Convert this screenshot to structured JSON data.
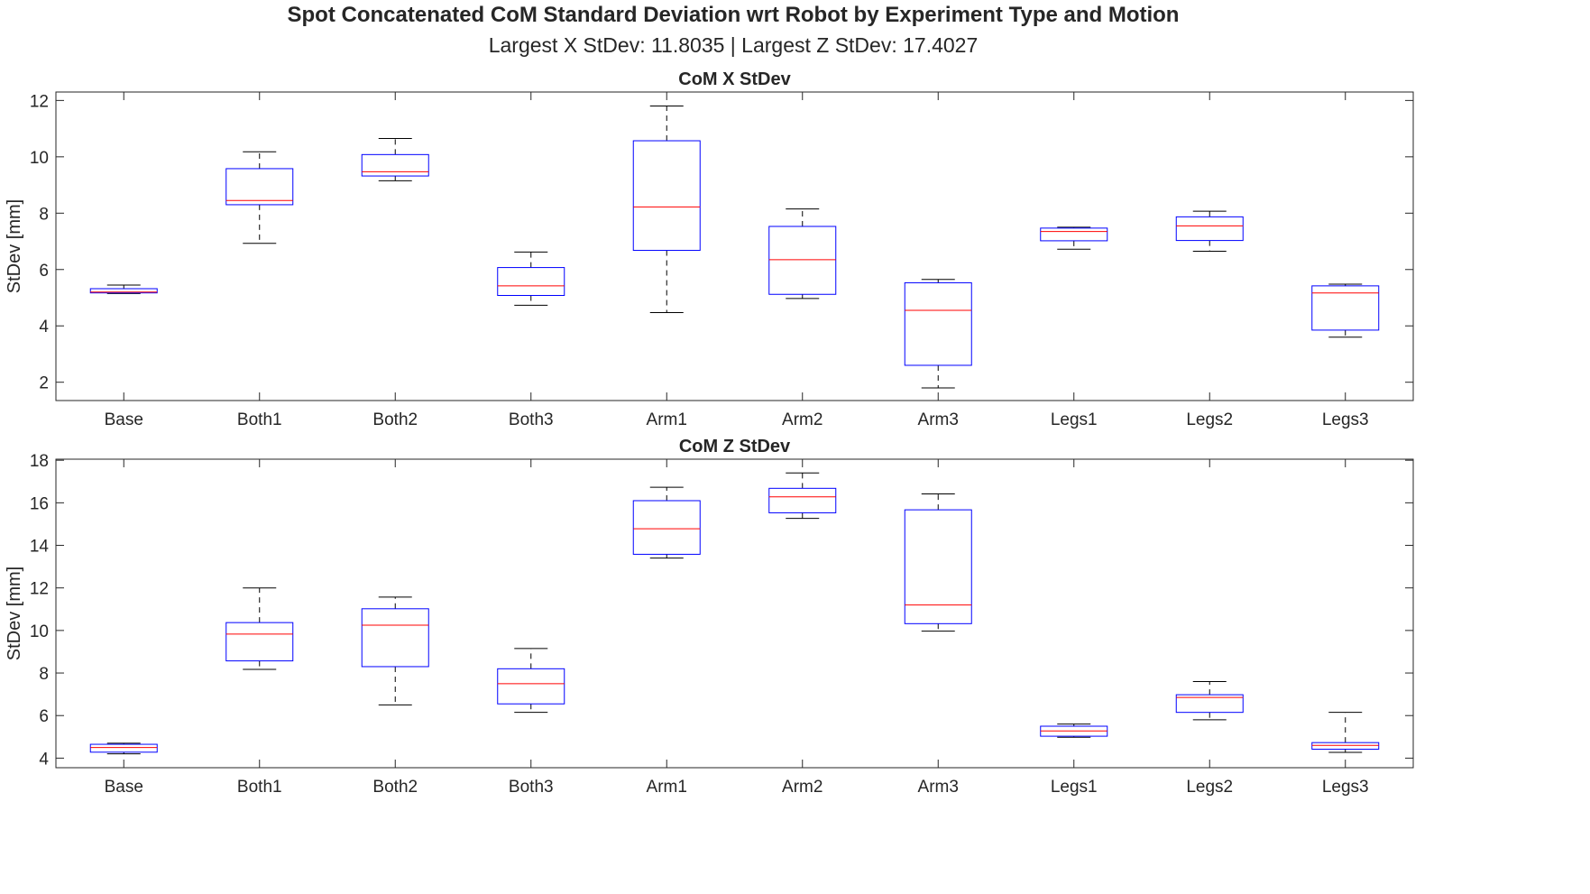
{
  "figure": {
    "title": "Spot Concatenated CoM Standard Deviation wrt Robot by Experiment Type and Motion",
    "subtitle": "Largest X StDev: 11.8035  |  Largest Z StDev: 17.4027"
  },
  "chart_data": [
    {
      "type": "boxplot",
      "title": "CoM X StDev",
      "xlabel": "",
      "ylabel": "StDev [mm]",
      "ylim": [
        1.35,
        12.3
      ],
      "yticks": [
        2,
        4,
        6,
        8,
        10,
        12
      ],
      "categories": [
        "Base",
        "Both1",
        "Both2",
        "Both3",
        "Arm1",
        "Arm2",
        "Arm3",
        "Legs1",
        "Legs2",
        "Legs3"
      ],
      "boxes": [
        {
          "min": 5.15,
          "q1": 5.17,
          "median": 5.2,
          "q3": 5.32,
          "max": 5.45
        },
        {
          "min": 6.93,
          "q1": 8.3,
          "median": 8.45,
          "q3": 9.58,
          "max": 10.18
        },
        {
          "min": 9.15,
          "q1": 9.32,
          "median": 9.47,
          "q3": 10.08,
          "max": 10.65
        },
        {
          "min": 4.73,
          "q1": 5.08,
          "median": 5.42,
          "q3": 6.07,
          "max": 6.62
        },
        {
          "min": 4.47,
          "q1": 6.68,
          "median": 8.22,
          "q3": 10.57,
          "max": 11.8035
        },
        {
          "min": 4.97,
          "q1": 5.12,
          "median": 6.35,
          "q3": 7.53,
          "max": 8.15
        },
        {
          "min": 1.8,
          "q1": 2.6,
          "median": 4.55,
          "q3": 5.53,
          "max": 5.65
        },
        {
          "min": 6.72,
          "q1": 7.02,
          "median": 7.35,
          "q3": 7.47,
          "max": 7.5
        },
        {
          "min": 6.65,
          "q1": 7.03,
          "median": 7.55,
          "q3": 7.87,
          "max": 8.07
        },
        {
          "min": 3.6,
          "q1": 3.85,
          "median": 5.17,
          "q3": 5.42,
          "max": 5.48
        }
      ],
      "colors": {
        "box": "#0000ff",
        "median": "#ff0000",
        "whisker": "#000000"
      }
    },
    {
      "type": "boxplot",
      "title": "CoM Z StDev",
      "xlabel": "",
      "ylabel": "StDev [mm]",
      "ylim": [
        3.55,
        18.05
      ],
      "yticks": [
        4,
        6,
        8,
        10,
        12,
        14,
        16,
        18
      ],
      "categories": [
        "Base",
        "Both1",
        "Both2",
        "Both3",
        "Arm1",
        "Arm2",
        "Arm3",
        "Legs1",
        "Legs2",
        "Legs3"
      ],
      "boxes": [
        {
          "min": 4.2,
          "q1": 4.28,
          "median": 4.5,
          "q3": 4.65,
          "max": 4.7
        },
        {
          "min": 8.17,
          "q1": 8.57,
          "median": 9.83,
          "q3": 10.37,
          "max": 12.0
        },
        {
          "min": 6.5,
          "q1": 8.3,
          "median": 10.25,
          "q3": 11.02,
          "max": 11.57
        },
        {
          "min": 6.15,
          "q1": 6.55,
          "median": 7.5,
          "q3": 8.2,
          "max": 9.15
        },
        {
          "min": 13.4,
          "q1": 13.58,
          "median": 14.78,
          "q3": 16.1,
          "max": 16.73
        },
        {
          "min": 15.27,
          "q1": 15.53,
          "median": 16.28,
          "q3": 16.68,
          "max": 17.4027
        },
        {
          "min": 9.97,
          "q1": 10.32,
          "median": 11.2,
          "q3": 15.67,
          "max": 16.42
        },
        {
          "min": 4.98,
          "q1": 5.03,
          "median": 5.28,
          "q3": 5.5,
          "max": 5.6
        },
        {
          "min": 5.8,
          "q1": 6.15,
          "median": 6.85,
          "q3": 6.98,
          "max": 7.6
        },
        {
          "min": 4.27,
          "q1": 4.42,
          "median": 4.6,
          "q3": 4.73,
          "max": 6.15
        }
      ],
      "colors": {
        "box": "#0000ff",
        "median": "#ff0000",
        "whisker": "#000000"
      }
    }
  ]
}
